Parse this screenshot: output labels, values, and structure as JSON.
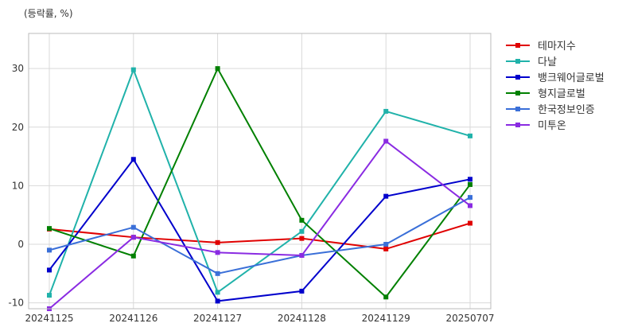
{
  "chart_data": {
    "type": "line",
    "unit_label": "(등락률, %)",
    "categories": [
      "20241125",
      "20241126",
      "20241127",
      "20241128",
      "20241129",
      "20250707"
    ],
    "ylim": [
      -11,
      36
    ],
    "yticks": [
      -10,
      0,
      10,
      20,
      30
    ],
    "grid": true,
    "legend_position": "right",
    "series": [
      {
        "name": "테마지수",
        "color": "#e00000",
        "values": [
          2.6,
          1.2,
          0.3,
          1.0,
          -0.8,
          3.6
        ]
      },
      {
        "name": "다날",
        "color": "#20b2aa",
        "values": [
          -8.7,
          29.8,
          -8.2,
          2.2,
          22.7,
          18.5
        ]
      },
      {
        "name": "뱅크웨어글로벌",
        "color": "#0000cc",
        "values": [
          -4.4,
          14.5,
          -9.7,
          -8.0,
          8.2,
          11.1
        ]
      },
      {
        "name": "형지글로벌",
        "color": "#008000",
        "values": [
          2.7,
          -2.0,
          30.0,
          4.1,
          -9.0,
          10.2
        ]
      },
      {
        "name": "한국정보인증",
        "color": "#3a6fd8",
        "values": [
          -1.0,
          2.9,
          -5.0,
          -1.9,
          0.0,
          8.0
        ]
      },
      {
        "name": "미투온",
        "color": "#8a2be2",
        "values": [
          -11.0,
          1.2,
          -1.4,
          -1.9,
          17.6,
          6.6
        ]
      }
    ]
  }
}
